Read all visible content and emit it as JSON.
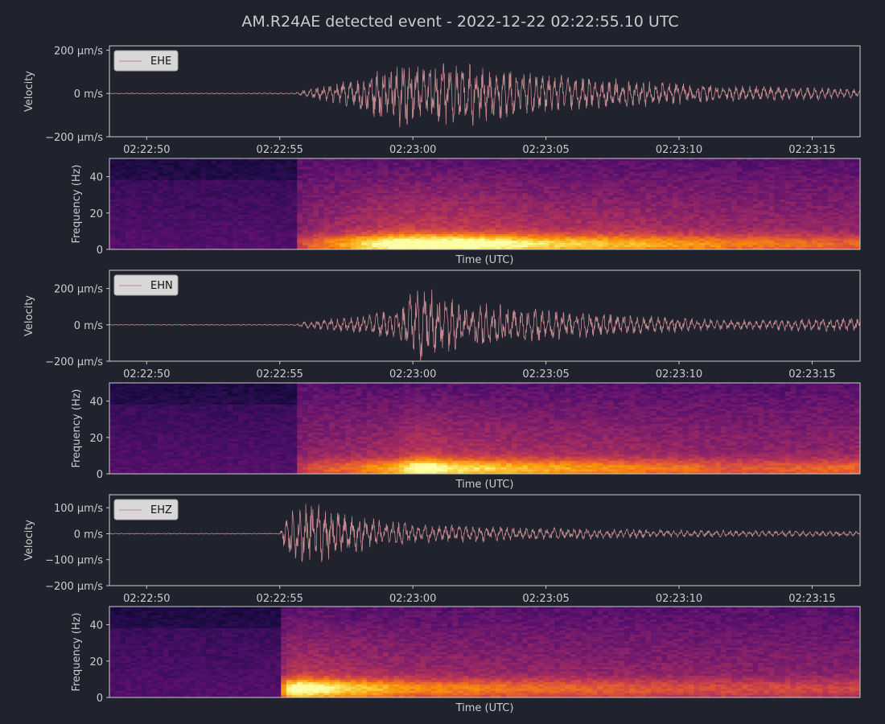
{
  "title": "AM.R24AE detected event - 2022-12-22 02:22:55.10 UTC",
  "colors": {
    "background": "#20232d",
    "axis_frame": "#cccccc",
    "text": "#cccccc",
    "trace": "#c48a90",
    "legend_bg": "#d8d8d8",
    "spectrogram_colormap": "inferno"
  },
  "chart_data": [
    {
      "type": "line",
      "channel": "EHE",
      "legend": {
        "entries": [
          "EHE"
        ],
        "placement": "top-left"
      },
      "ylabel": "Velocity",
      "y_unit": "m/s",
      "ylim": [
        -0.0002,
        0.00022
      ],
      "y_ticks": [
        {
          "value": 0.0002,
          "label": "200 µm/s"
        },
        {
          "value": 0,
          "label": "0 m/s"
        },
        {
          "value": -0.0002,
          "label": "−200 µm/s"
        }
      ],
      "xlim": [
        "02:22:48.6",
        "02:23:16.8"
      ],
      "x_ticks": [
        "02:22:50",
        "02:22:55",
        "02:23:00",
        "02:23:05",
        "02:23:10",
        "02:23:15"
      ],
      "onset": "02:22:55.6",
      "envelope": [
        {
          "t": "02:22:48.6",
          "amp": 2e-06
        },
        {
          "t": "02:22:55.5",
          "amp": 3e-06
        },
        {
          "t": "02:22:56.0",
          "amp": 2e-05
        },
        {
          "t": "02:22:57.5",
          "amp": 6e-05
        },
        {
          "t": "02:22:59.5",
          "amp": 0.00017
        },
        {
          "t": "02:23:00.5",
          "amp": 0.00017
        },
        {
          "t": "02:23:02.5",
          "amp": 0.00015
        },
        {
          "t": "02:23:05.0",
          "amp": 9e-05
        },
        {
          "t": "02:23:08.0",
          "amp": 7e-05
        },
        {
          "t": "02:23:12.0",
          "amp": 4e-05
        },
        {
          "t": "02:23:16.8",
          "amp": 2.5e-05
        }
      ]
    },
    {
      "type": "heatmap",
      "channel": "EHE",
      "ylabel": "Frequency (Hz)",
      "xlabel": "Time (UTC)",
      "ylim": [
        0,
        50
      ],
      "y_ticks": [
        0,
        20,
        40
      ],
      "xlim": [
        "02:22:48.6",
        "02:23:16.8"
      ],
      "x_ticks": [],
      "colormap": "inferno",
      "onset": "02:22:55.6",
      "peak_frequency_hz": 3
    },
    {
      "type": "line",
      "channel": "EHN",
      "legend": {
        "entries": [
          "EHN"
        ],
        "placement": "top-left"
      },
      "ylabel": "Velocity",
      "y_unit": "m/s",
      "ylim": [
        -0.0002,
        0.0003
      ],
      "y_ticks": [
        {
          "value": 0.0002,
          "label": "200 µm/s"
        },
        {
          "value": 0,
          "label": "0 m/s"
        },
        {
          "value": -0.0002,
          "label": "−200 µm/s"
        }
      ],
      "xlim": [
        "02:22:48.6",
        "02:23:16.8"
      ],
      "x_ticks": [
        "02:22:50",
        "02:22:55",
        "02:23:00",
        "02:23:05",
        "02:23:10",
        "02:23:15"
      ],
      "onset": "02:22:55.6",
      "envelope": [
        {
          "t": "02:22:48.6",
          "amp": 2e-06
        },
        {
          "t": "02:22:55.5",
          "amp": 3e-06
        },
        {
          "t": "02:22:56.0",
          "amp": 2e-05
        },
        {
          "t": "02:22:58.0",
          "amp": 5e-05
        },
        {
          "t": "02:22:59.5",
          "amp": 0.0001
        },
        {
          "t": "02:23:00.3",
          "amp": 0.00024
        },
        {
          "t": "02:23:01.5",
          "amp": 0.00015
        },
        {
          "t": "02:23:04.0",
          "amp": 0.0001
        },
        {
          "t": "02:23:08.0",
          "amp": 6e-05
        },
        {
          "t": "02:23:12.0",
          "amp": 3e-05
        },
        {
          "t": "02:23:16.8",
          "amp": 4e-05
        }
      ]
    },
    {
      "type": "heatmap",
      "channel": "EHN",
      "ylabel": "Frequency (Hz)",
      "xlabel": "Time (UTC)",
      "ylim": [
        0,
        50
      ],
      "y_ticks": [
        0,
        20,
        40
      ],
      "xlim": [
        "02:22:48.6",
        "02:23:16.8"
      ],
      "x_ticks": [],
      "colormap": "inferno",
      "onset": "02:22:55.6",
      "peak_frequency_hz": 3
    },
    {
      "type": "line",
      "channel": "EHZ",
      "legend": {
        "entries": [
          "EHZ"
        ],
        "placement": "top-left"
      },
      "ylabel": "Velocity",
      "y_unit": "m/s",
      "ylim": [
        -0.0002,
        0.00015
      ],
      "y_ticks": [
        {
          "value": 0.0001,
          "label": "100 µm/s"
        },
        {
          "value": 0,
          "label": "0 m/s"
        },
        {
          "value": -0.0001,
          "label": "−100 µm/s"
        },
        {
          "value": -0.0002,
          "label": "−200 µm/s"
        }
      ],
      "xlim": [
        "02:22:48.6",
        "02:23:16.8"
      ],
      "x_ticks": [
        "02:22:50",
        "02:22:55",
        "02:23:00",
        "02:23:05",
        "02:23:10",
        "02:23:15"
      ],
      "onset": "02:22:55.1",
      "envelope": [
        {
          "t": "02:22:48.6",
          "amp": 2e-06
        },
        {
          "t": "02:22:55.0",
          "amp": 2e-06
        },
        {
          "t": "02:22:55.3",
          "amp": 0.0001
        },
        {
          "t": "02:22:55.8",
          "amp": 0.00014
        },
        {
          "t": "02:22:57.5",
          "amp": 8e-05
        },
        {
          "t": "02:23:00.0",
          "amp": 4e-05
        },
        {
          "t": "02:23:05.0",
          "amp": 2.5e-05
        },
        {
          "t": "02:23:10.0",
          "amp": 1.5e-05
        },
        {
          "t": "02:23:16.8",
          "amp": 1e-05
        }
      ]
    },
    {
      "type": "heatmap",
      "channel": "EHZ",
      "ylabel": "Frequency (Hz)",
      "xlabel": "Time (UTC)",
      "ylim": [
        0,
        50
      ],
      "y_ticks": [
        0,
        20,
        40
      ],
      "xlim": [
        "02:22:48.6",
        "02:23:16.8"
      ],
      "x_ticks": [],
      "colormap": "inferno",
      "onset": "02:22:55.1",
      "peak_frequency_hz": 5
    }
  ]
}
